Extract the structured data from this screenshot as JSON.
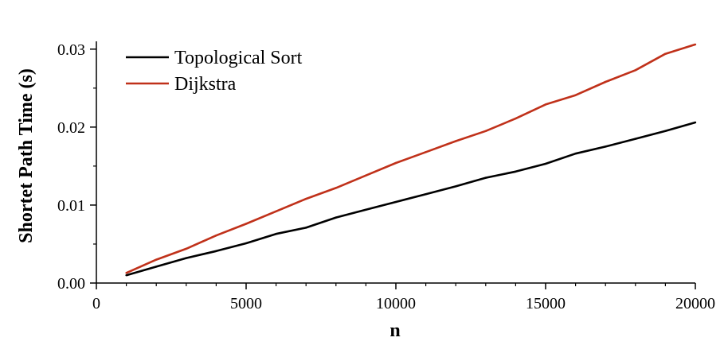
{
  "chart_data": {
    "type": "line",
    "title": "",
    "xlabel": "n",
    "ylabel": "Shortet Path Time (s)",
    "xlim": [
      0,
      20000
    ],
    "ylim": [
      0,
      0.031
    ],
    "xticks": [
      0,
      5000,
      10000,
      15000,
      20000
    ],
    "xtick_labels": [
      "0",
      "5000",
      "10000",
      "15000",
      "20000"
    ],
    "xminor": [
      1000,
      2000,
      3000,
      4000,
      6000,
      7000,
      8000,
      9000,
      11000,
      12000,
      13000,
      14000,
      16000,
      17000,
      18000,
      19000
    ],
    "yticks": [
      0,
      0.01,
      0.02,
      0.03
    ],
    "ytick_labels": [
      "0.00",
      "0.01",
      "0.02",
      "0.03"
    ],
    "yminor": [
      0.005,
      0.015,
      0.025
    ],
    "grid": false,
    "legend_position": "top-left",
    "x": [
      1000,
      2000,
      3000,
      4000,
      5000,
      6000,
      7000,
      8000,
      9000,
      10000,
      11000,
      12000,
      13000,
      14000,
      15000,
      16000,
      17000,
      18000,
      19000,
      20000
    ],
    "series": [
      {
        "name": "Topological Sort",
        "color": "#000000",
        "values": [
          0.001,
          0.0021,
          0.0032,
          0.0041,
          0.0051,
          0.0063,
          0.0071,
          0.0084,
          0.0094,
          0.0104,
          0.0114,
          0.0124,
          0.0135,
          0.0143,
          0.0153,
          0.0166,
          0.0175,
          0.0185,
          0.0195,
          0.0206
        ]
      },
      {
        "name": "Dijkstra",
        "color": "#c0311a",
        "values": [
          0.0013,
          0.003,
          0.0044,
          0.0061,
          0.0076,
          0.0092,
          0.0108,
          0.0122,
          0.0138,
          0.0154,
          0.0168,
          0.0182,
          0.0195,
          0.0211,
          0.0229,
          0.0241,
          0.0258,
          0.0273,
          0.0294,
          0.0306
        ]
      }
    ]
  }
}
